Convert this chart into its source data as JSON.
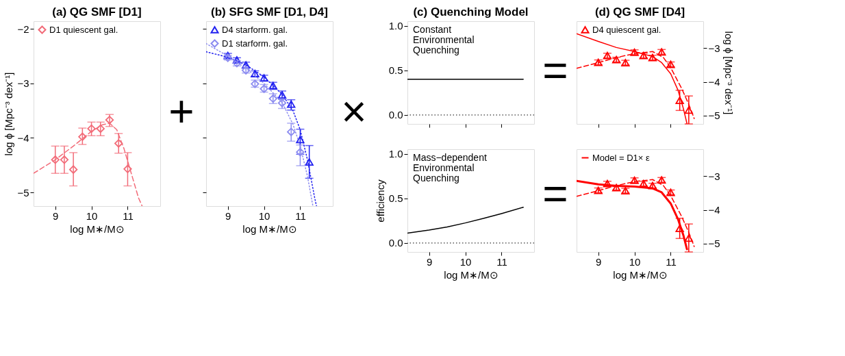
{
  "chart_data": [
    {
      "type": "scatter",
      "title": "(a) QG SMF [D1]",
      "xlabel": "log M∗/M⊙",
      "ylabel": "log ϕ [Mpc⁻³ dex⁻¹]",
      "xlim": [
        8.4,
        11.9
      ],
      "ylim": [
        -5.25,
        -1.86
      ],
      "xticks": [
        9,
        10,
        11
      ],
      "yticks": [
        -5,
        -4,
        -3,
        -2
      ],
      "legend": "top left",
      "grid": false,
      "series": [
        {
          "name": "D1 quiescent gal.",
          "color": "#f26b78",
          "marker": "diamond",
          "x": [
            9.0,
            9.25,
            9.5,
            9.75,
            10.0,
            10.25,
            10.5,
            10.75,
            11.0
          ],
          "values": [
            -4.4,
            -4.4,
            -4.58,
            -3.98,
            -3.83,
            -3.83,
            -3.67,
            -4.1,
            -4.57
          ],
          "errors": [
            [
              -4.65,
              -4.15
            ],
            [
              -4.65,
              -4.15
            ],
            [
              -4.88,
              -4.27
            ],
            [
              -4.12,
              -3.82
            ],
            [
              -3.96,
              -3.71
            ],
            [
              -3.96,
              -3.71
            ],
            [
              -3.79,
              -3.57
            ],
            [
              -4.28,
              -3.92
            ],
            [
              -4.88,
              -4.27
            ]
          ]
        },
        {
          "type": "line",
          "color": "#f26b78",
          "line_style": "dashed",
          "x": [
            8.4,
            9.0,
            9.5,
            10.0,
            10.3,
            10.5,
            10.7,
            10.9,
            11.1,
            11.3,
            11.4
          ],
          "values": [
            -4.65,
            -4.4,
            -4.15,
            -3.88,
            -3.76,
            -3.73,
            -3.85,
            -4.2,
            -4.65,
            -5.1,
            -5.25
          ]
        }
      ]
    },
    {
      "type": "other",
      "annotations": [
        "+"
      ]
    },
    {
      "type": "scatter",
      "title": "(b) SFG SMF [D1, D4]",
      "xlabel": "log M∗/M⊙",
      "xlim": [
        8.4,
        11.9
      ],
      "ylim": [
        -5.25,
        -1.86
      ],
      "xticks": [
        9,
        10,
        11
      ],
      "yticks": [
        -5,
        -4,
        -3,
        -2
      ],
      "tick_labels": "x",
      "legend": "top left",
      "grid": false,
      "series": [
        {
          "name": "D4 starform. gal.",
          "color": "#2020f0",
          "marker": "triangle",
          "x": [
            9.0,
            9.25,
            9.5,
            9.75,
            10.0,
            10.25,
            10.5,
            10.75,
            11.0,
            11.25
          ],
          "values": [
            -2.49,
            -2.57,
            -2.66,
            -2.82,
            -2.9,
            -3.04,
            -3.21,
            -3.38,
            -4.03,
            -4.44
          ],
          "errors": [
            0.04,
            0.04,
            0.05,
            0.05,
            0.05,
            [
              -3.11,
              -2.98
            ],
            [
              -3.29,
              -3.14
            ],
            [
              -3.49,
              -3.3
            ],
            [
              -4.3,
              -3.84
            ],
            [
              -4.74,
              -4.14
            ]
          ]
        },
        {
          "name": "D1 starform. gal.",
          "color": "#8c8cf0",
          "marker": "diamond",
          "x": [
            9.0,
            9.25,
            9.5,
            9.75,
            10.0,
            10.25,
            10.5,
            10.75,
            11.0
          ],
          "values": [
            -2.53,
            -2.63,
            -2.76,
            -3.01,
            -3.1,
            -3.28,
            -3.36,
            -3.89,
            -4.26
          ],
          "errors": [
            0.04,
            0.05,
            0.05,
            [
              -3.07,
              -2.94
            ],
            [
              -3.16,
              -3.02
            ],
            [
              -3.37,
              -3.19
            ],
            [
              -3.46,
              -3.28
            ],
            [
              -4.06,
              -3.73
            ],
            [
              -4.51,
              -4.13
            ]
          ]
        },
        {
          "type": "line",
          "color": "#2020f0",
          "line_style": "dotted",
          "x": [
            8.4,
            9.0,
            9.5,
            10.0,
            10.5,
            10.8,
            11.0,
            11.2,
            11.4,
            11.45
          ],
          "values": [
            -2.42,
            -2.52,
            -2.66,
            -2.88,
            -3.2,
            -3.5,
            -3.85,
            -4.4,
            -5.1,
            -5.25
          ]
        },
        {
          "type": "line",
          "color": "#8c8cf0",
          "line_style": "dotted",
          "x": [
            8.4,
            9.0,
            9.5,
            10.0,
            10.5,
            10.8,
            11.0,
            11.2,
            11.35
          ],
          "values": [
            -2.27,
            -2.5,
            -2.72,
            -3.0,
            -3.35,
            -3.75,
            -4.15,
            -4.7,
            -5.25
          ]
        }
      ]
    },
    {
      "type": "other",
      "annotations": [
        "×"
      ]
    },
    {
      "type": "line",
      "title": "(c) Quenching Model",
      "xlim": [
        8.4,
        11.9
      ],
      "ylim": [
        -0.1,
        1.05
      ],
      "xticks": [
        9,
        10,
        11
      ],
      "yticks": [
        {
          "value": 0,
          "label": "0.0"
        },
        {
          "value": 0.5,
          "label": "0.5"
        },
        {
          "value": 1,
          "label": "1.0"
        }
      ],
      "tick_labels": "y",
      "grid": false,
      "annotations": [
        "Constant\nEnvironmental\nQuenching"
      ],
      "ref_lines": [
        {
          "axis": "y",
          "value": 0,
          "color": "#000000",
          "line_style": "dotted"
        }
      ],
      "series": [
        {
          "color": "#000000",
          "line_style": "solid",
          "x": [
            8.4,
            11.6
          ],
          "values": [
            0.4,
            0.4
          ]
        }
      ]
    },
    {
      "type": "line",
      "xlabel": "log M∗/M⊙",
      "ylabel": "efficiency",
      "xlim": [
        8.4,
        11.9
      ],
      "ylim": [
        -0.1,
        1.05
      ],
      "xticks": [
        9,
        10,
        11
      ],
      "yticks": [
        {
          "value": 0,
          "label": "0.0"
        },
        {
          "value": 0.5,
          "label": "0.5"
        },
        {
          "value": 1,
          "label": "1.0"
        }
      ],
      "grid": false,
      "annotations": [
        "Mass−dependent\nEnvironmental\nQuenching"
      ],
      "ref_lines": [
        {
          "axis": "y",
          "value": 0,
          "color": "#000000",
          "line_style": "dotted"
        }
      ],
      "series": [
        {
          "color": "#000000",
          "line_style": "solid",
          "x": [
            8.4,
            9.0,
            9.5,
            10.0,
            10.5,
            11.0,
            11.6
          ],
          "values": [
            0.11,
            0.145,
            0.18,
            0.225,
            0.275,
            0.33,
            0.4
          ]
        }
      ]
    },
    {
      "type": "other",
      "annotations": [
        "="
      ]
    },
    {
      "type": "other",
      "annotations": [
        "="
      ]
    },
    {
      "type": "scatter",
      "title": "(d) QG SMF [D4]",
      "y2label": "log ϕ [Mpc⁻³ dex⁻¹]",
      "xlim": [
        8.4,
        11.9
      ],
      "y2lim": [
        -5.25,
        -2.2
      ],
      "xticks": [
        9,
        10,
        11
      ],
      "y2ticks": [
        -5,
        -4,
        -3
      ],
      "tick_labels": "y",
      "legend": "top left",
      "grid": false,
      "series": [
        {
          "name": "D4 quiescent gal.",
          "axis": "y2",
          "color": "#ff0000",
          "marker": "triangle",
          "x": [
            9.0,
            9.25,
            9.5,
            9.75,
            10.0,
            10.25,
            10.5,
            10.75,
            11.0,
            11.25,
            11.5
          ],
          "values": [
            -3.42,
            -3.22,
            -3.34,
            -3.43,
            -3.12,
            -3.22,
            -3.28,
            -3.11,
            -3.48,
            -4.55,
            -4.84
          ],
          "errors": [
            0.07,
            0.07,
            0.07,
            0.07,
            0.07,
            0.07,
            0.07,
            0.07,
            0.07,
            [
              -4.85,
              -4.25
            ],
            [
              -5.25,
              -4.42
            ]
          ]
        },
        {
          "type": "line",
          "axis": "y2",
          "color": "#ff0000",
          "line_style": "solid",
          "x": [
            8.4,
            9.0,
            9.5,
            10.0,
            10.5,
            10.75,
            11.0,
            11.2,
            11.35,
            11.45
          ],
          "values": [
            -2.57,
            -2.8,
            -2.98,
            -3.1,
            -3.25,
            -3.43,
            -3.76,
            -4.24,
            -4.79,
            -5.24
          ]
        },
        {
          "type": "line",
          "axis": "y2",
          "color": "#ff0000",
          "line_style": "dashed",
          "x": [
            8.4,
            9.0,
            9.5,
            10.0,
            10.5,
            10.8,
            11.0,
            11.3,
            11.5,
            11.65
          ],
          "values": [
            -3.6,
            -3.43,
            -3.28,
            -3.16,
            -3.1,
            -3.28,
            -3.58,
            -4.19,
            -4.67,
            -5.09
          ]
        }
      ]
    },
    {
      "type": "scatter",
      "xlabel": "log M∗/M⊙",
      "xlim": [
        8.4,
        11.9
      ],
      "y2lim": [
        -5.25,
        -2.2
      ],
      "xticks": [
        9,
        10,
        11
      ],
      "y2ticks": [
        -5,
        -4,
        -3
      ],
      "legend": "top left",
      "grid": false,
      "series": [
        {
          "axis": "y2",
          "color": "#ff0000",
          "marker": "triangle",
          "x": [
            9.0,
            9.25,
            9.5,
            9.75,
            10.0,
            10.25,
            10.5,
            10.75,
            11.0,
            11.25,
            11.5
          ],
          "values": [
            -3.42,
            -3.22,
            -3.34,
            -3.43,
            -3.12,
            -3.22,
            -3.28,
            -3.11,
            -3.48,
            -4.55,
            -4.84
          ],
          "errors": [
            0.07,
            0.07,
            0.07,
            0.07,
            0.07,
            0.07,
            0.07,
            0.07,
            0.07,
            [
              -4.85,
              -4.25
            ],
            [
              -5.25,
              -4.42
            ]
          ]
        },
        {
          "name": "Model = D1× ε",
          "type": "line",
          "axis": "y2",
          "color": "#ff0000",
          "line_style": "solid",
          "x": [
            8.4,
            9.0,
            9.5,
            10.0,
            10.5,
            10.75,
            11.0,
            11.2,
            11.35,
            11.45
          ],
          "values": [
            -3.14,
            -3.24,
            -3.29,
            -3.31,
            -3.36,
            -3.48,
            -3.81,
            -4.27,
            -4.75,
            -5.17
          ]
        },
        {
          "type": "line",
          "axis": "y2",
          "color": "#ff0000",
          "line_style": "dashed",
          "x": [
            8.4,
            9.0,
            9.5,
            10.0,
            10.5,
            10.8,
            11.0,
            11.3,
            11.5,
            11.65
          ],
          "values": [
            -3.6,
            -3.43,
            -3.28,
            -3.16,
            -3.1,
            -3.28,
            -3.58,
            -4.19,
            -4.67,
            -5.09
          ]
        }
      ]
    }
  ]
}
